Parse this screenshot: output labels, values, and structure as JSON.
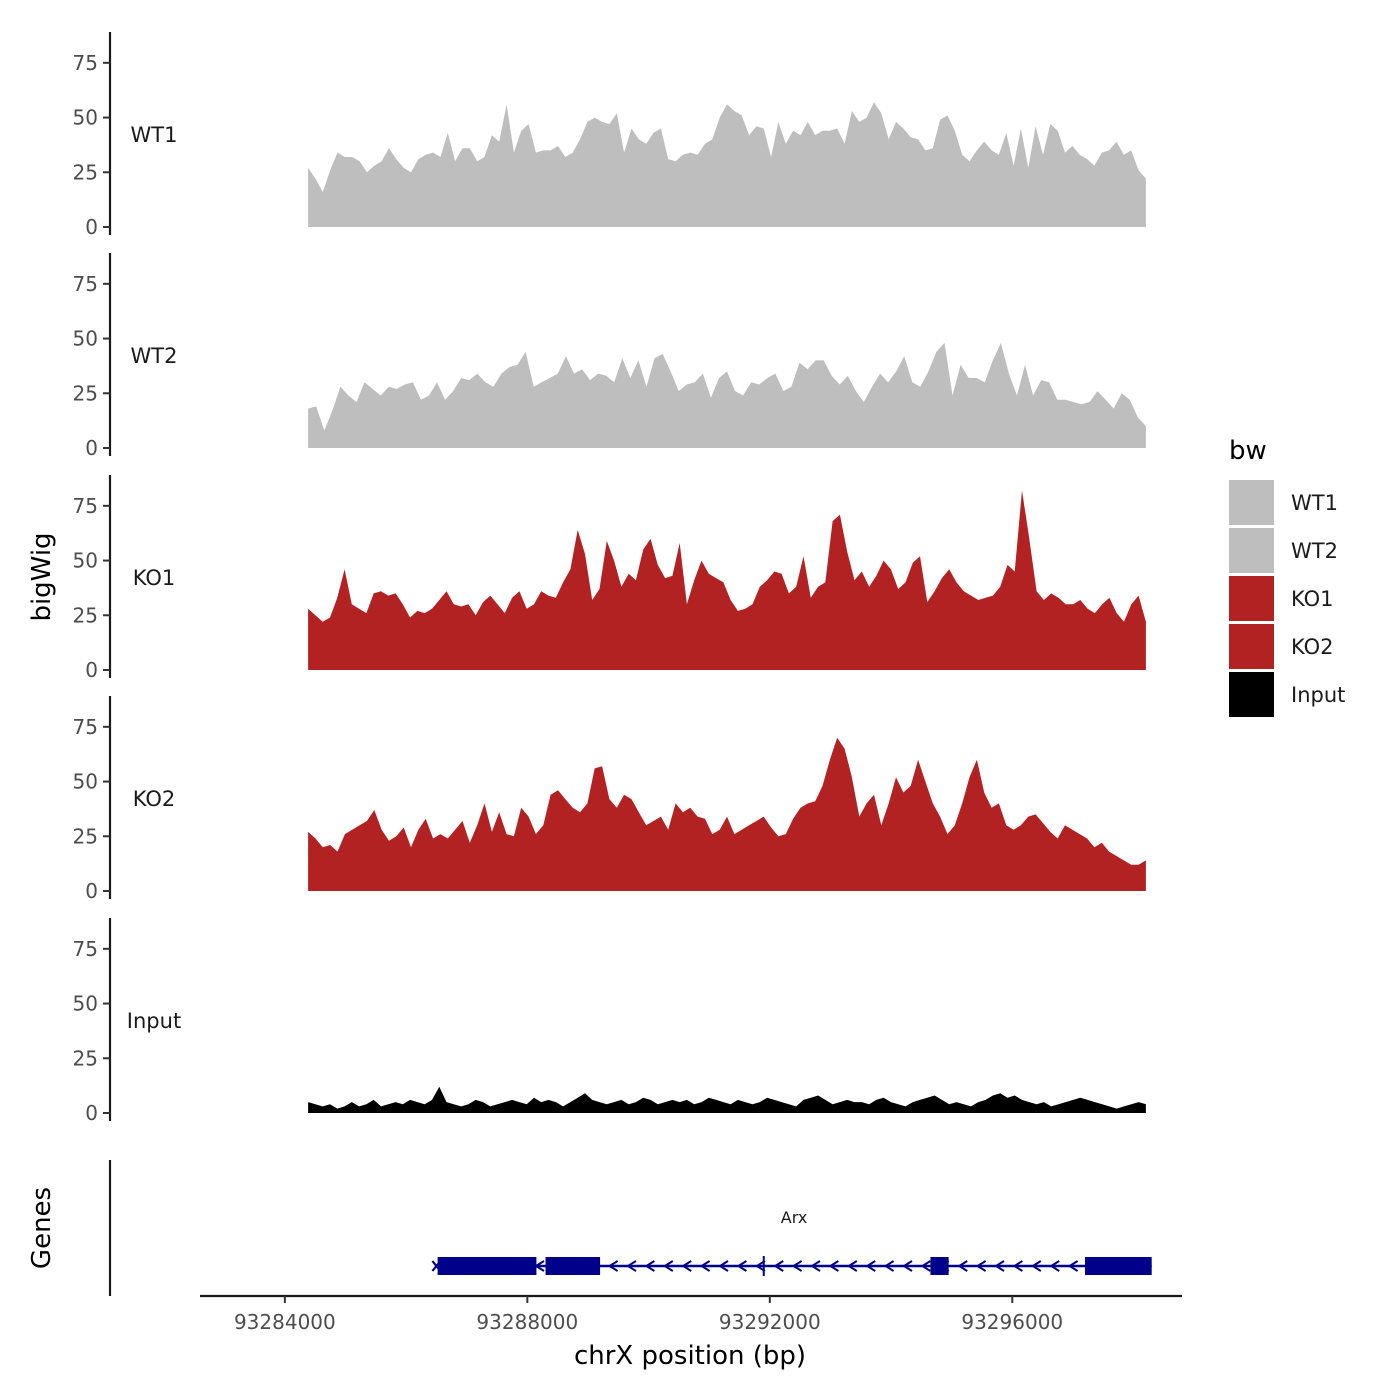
{
  "chart_data": {
    "type": "area",
    "x_range_bp": [
      93284384,
      93298204
    ],
    "xlim": [
      93282600,
      93298800
    ],
    "x_ticks": [
      93284000,
      93288000,
      93292000,
      93296000
    ],
    "x_tick_labels": [
      "93284000",
      "93288000",
      "93292000",
      "93296000"
    ],
    "xlabel": "chrX position (bp)",
    "ylabel": "bigWig",
    "genes_label": "Genes",
    "ylim": [
      0,
      90
    ],
    "y_ticks": [
      0,
      25,
      50,
      75
    ],
    "y_tick_labels": [
      "0",
      "25",
      "50",
      "75"
    ],
    "legend": {
      "title": "bw",
      "entries": [
        {
          "name": "WT1",
          "color": "#bebebe"
        },
        {
          "name": "WT2",
          "color": "#bebebe"
        },
        {
          "name": "KO1",
          "color": "#b22222"
        },
        {
          "name": "KO2",
          "color": "#b22222"
        },
        {
          "name": "Input",
          "color": "#000000"
        }
      ]
    },
    "series": [
      {
        "name": "WT1",
        "color": "#bebebe",
        "values": [
          27,
          22,
          16,
          26,
          34,
          32,
          32,
          30,
          25,
          28,
          30,
          36,
          31,
          27,
          25,
          31,
          33,
          34,
          32,
          43,
          30,
          36,
          36,
          30,
          32,
          42,
          39,
          56,
          34,
          44,
          47,
          34,
          35,
          35,
          37,
          32,
          34,
          40,
          48,
          50,
          48,
          47,
          52,
          34,
          45,
          40,
          38,
          43,
          45,
          31,
          30,
          33,
          34,
          33,
          38,
          40,
          50,
          56,
          53,
          51,
          42,
          46,
          45,
          32,
          48,
          38,
          44,
          42,
          48,
          42,
          44,
          44,
          45,
          38,
          53,
          48,
          50,
          57,
          52,
          40,
          48,
          45,
          41,
          40,
          35,
          36,
          49,
          51,
          44,
          33,
          30,
          35,
          39,
          35,
          33,
          43,
          28,
          45,
          27,
          46,
          33,
          47,
          44,
          34,
          37,
          33,
          31,
          28,
          34,
          35,
          39,
          33,
          35,
          26,
          22
        ]
      },
      {
        "name": "WT2",
        "color": "#bebebe",
        "values": [
          18,
          19,
          8,
          17,
          28,
          24,
          21,
          30,
          27,
          24,
          28,
          27,
          29,
          30,
          22,
          24,
          30,
          22,
          26,
          32,
          31,
          34,
          30,
          28,
          34,
          37,
          38,
          44,
          28,
          30,
          32,
          34,
          42,
          34,
          36,
          31,
          34,
          33,
          30,
          41,
          32,
          40,
          28,
          41,
          43,
          35,
          26,
          29,
          30,
          34,
          23,
          32,
          35,
          26,
          24,
          30,
          29,
          32,
          34,
          26,
          28,
          39,
          36,
          40,
          40,
          33,
          29,
          33,
          26,
          21,
          28,
          34,
          30,
          35,
          42,
          30,
          28,
          35,
          44,
          48,
          24,
          38,
          32,
          32,
          30,
          40,
          48,
          34,
          24,
          38,
          24,
          31,
          30,
          22,
          22,
          21,
          20,
          21,
          26,
          22,
          18,
          25,
          22,
          14,
          10
        ]
      },
      {
        "name": "KO1",
        "color": "#b22222",
        "values": [
          28,
          25,
          22,
          24,
          33,
          46,
          30,
          28,
          26,
          35,
          36,
          34,
          35,
          30,
          24,
          27,
          26,
          28,
          32,
          36,
          30,
          29,
          30,
          25,
          31,
          34,
          30,
          26,
          33,
          36,
          28,
          30,
          36,
          34,
          33,
          40,
          46,
          64,
          53,
          32,
          37,
          59,
          50,
          38,
          44,
          41,
          55,
          60,
          48,
          42,
          43,
          58,
          30,
          41,
          50,
          44,
          42,
          40,
          32,
          27,
          28,
          30,
          38,
          41,
          45,
          44,
          35,
          38,
          52,
          33,
          38,
          40,
          68,
          71,
          54,
          41,
          45,
          38,
          43,
          50,
          46,
          37,
          40,
          49,
          52,
          31,
          36,
          42,
          46,
          40,
          36,
          34,
          32,
          33,
          34,
          38,
          48,
          45,
          82,
          60,
          36,
          32,
          35,
          33,
          30,
          30,
          32,
          28,
          26,
          30,
          33,
          26,
          22,
          30,
          34,
          22
        ]
      },
      {
        "name": "KO2",
        "color": "#b22222",
        "values": [
          27,
          24,
          20,
          21,
          18,
          26,
          28,
          30,
          32,
          37,
          28,
          23,
          25,
          29,
          20,
          28,
          33,
          24,
          26,
          24,
          28,
          32,
          22,
          30,
          40,
          27,
          36,
          26,
          25,
          38,
          34,
          26,
          30,
          44,
          46,
          42,
          38,
          36,
          40,
          56,
          57,
          42,
          38,
          44,
          42,
          36,
          30,
          32,
          34,
          28,
          40,
          36,
          38,
          34,
          33,
          26,
          28,
          34,
          26,
          28,
          30,
          32,
          34,
          29,
          25,
          26,
          33,
          38,
          40,
          41,
          48,
          60,
          70,
          65,
          52,
          34,
          40,
          44,
          30,
          40,
          52,
          45,
          48,
          60,
          50,
          40,
          34,
          26,
          30,
          40,
          52,
          60,
          45,
          38,
          40,
          30,
          28,
          30,
          34,
          35,
          31,
          27,
          24,
          30,
          28,
          26,
          24,
          20,
          22,
          18,
          16,
          14,
          12,
          12,
          14
        ]
      },
      {
        "name": "Input",
        "color": "#000000",
        "values": [
          5,
          4,
          3,
          4,
          2,
          3,
          5,
          3,
          4,
          6,
          3,
          4,
          5,
          4,
          6,
          5,
          4,
          6,
          12,
          5,
          4,
          3,
          4,
          6,
          5,
          3,
          4,
          5,
          6,
          5,
          4,
          7,
          5,
          6,
          5,
          3,
          5,
          7,
          9,
          6,
          5,
          4,
          5,
          6,
          4,
          5,
          7,
          6,
          4,
          5,
          6,
          5,
          6,
          4,
          5,
          7,
          6,
          5,
          4,
          6,
          5,
          4,
          5,
          7,
          6,
          5,
          4,
          3,
          6,
          7,
          8,
          6,
          4,
          5,
          6,
          5,
          5,
          4,
          6,
          7,
          5,
          4,
          3,
          5,
          6,
          7,
          8,
          6,
          4,
          5,
          4,
          3,
          5,
          6,
          8,
          9,
          7,
          8,
          6,
          5,
          4,
          5,
          3,
          4,
          5,
          6,
          7,
          6,
          5,
          4,
          3,
          2,
          3,
          4,
          5,
          4
        ]
      }
    ],
    "gene_track": {
      "gene_name": "Arx",
      "gene_start_bp": 93286500,
      "gene_end_bp": 93298300,
      "tss_bp": 93286500,
      "direction": "left",
      "exons_bp": [
        [
          93286520,
          93288150
        ],
        [
          93288300,
          93289200
        ],
        [
          93294650,
          93294950
        ],
        [
          93297200,
          93298300
        ]
      ],
      "marker_bp": 93291900
    }
  }
}
